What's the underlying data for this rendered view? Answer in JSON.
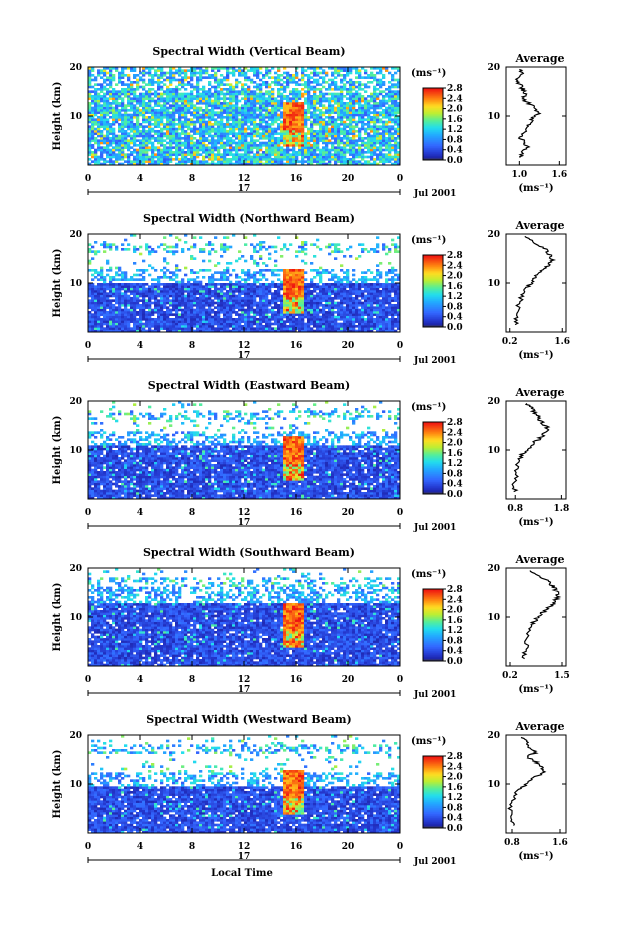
{
  "chart_data": [
    {
      "type": "heatmap",
      "title": "Spectral Width (Vertical Beam)",
      "ylabel": "Height (km)",
      "x_ticks": [
        "0",
        "4",
        "8",
        "12",
        "16",
        "20",
        "0"
      ],
      "y_ticks": [
        "10",
        "20"
      ],
      "ylim": [
        0,
        20
      ],
      "date_label": "17",
      "date_suffix": "Jul 2001",
      "cbar_unit": "(ms⁻¹)",
      "cbar_ticks": [
        "0.0",
        "0.4",
        "0.8",
        "1.2",
        "1.6",
        "2.0",
        "2.4",
        "2.8"
      ],
      "avg": {
        "title": "Average",
        "x_ticks": [
          "1.0",
          "1.6"
        ],
        "xlim": [
          0.8,
          1.7
        ],
        "y_ticks": [
          "10",
          "20"
        ],
        "xlabel": "(ms⁻¹)",
        "profile": [
          [
            1.0,
            1.5
          ],
          [
            1.05,
            2.5
          ],
          [
            1.12,
            3.5
          ],
          [
            1.08,
            4.5
          ],
          [
            1.02,
            5.5
          ],
          [
            1.05,
            6.5
          ],
          [
            1.1,
            7.5
          ],
          [
            1.15,
            8.5
          ],
          [
            1.2,
            9.5
          ],
          [
            1.3,
            10.5
          ],
          [
            1.25,
            11.5
          ],
          [
            1.15,
            12.5
          ],
          [
            1.05,
            13.5
          ],
          [
            1.1,
            14.5
          ],
          [
            1.05,
            15.5
          ],
          [
            1.0,
            16.5
          ],
          [
            0.98,
            17.5
          ],
          [
            1.05,
            18.5
          ],
          [
            1.0,
            19.5
          ]
        ]
      }
    },
    {
      "type": "heatmap",
      "title": "Spectral Width (Northward Beam)",
      "ylabel": "Height (km)",
      "x_ticks": [
        "0",
        "4",
        "8",
        "12",
        "16",
        "20",
        "0"
      ],
      "y_ticks": [
        "10",
        "20"
      ],
      "ylim": [
        0,
        20
      ],
      "date_label": "17",
      "date_suffix": "Jul 2001",
      "cbar_unit": "(ms⁻¹)",
      "cbar_ticks": [
        "0.0",
        "0.4",
        "0.8",
        "1.2",
        "1.6",
        "2.0",
        "2.4",
        "2.8"
      ],
      "avg": {
        "title": "Average",
        "x_ticks": [
          "0.2",
          "1.6"
        ],
        "xlim": [
          0.1,
          1.7
        ],
        "y_ticks": [
          "10",
          "20"
        ],
        "xlabel": "(ms⁻¹)",
        "profile": [
          [
            0.35,
            1.5
          ],
          [
            0.38,
            3
          ],
          [
            0.42,
            5
          ],
          [
            0.5,
            7
          ],
          [
            0.6,
            8.5
          ],
          [
            0.72,
            9.5
          ],
          [
            0.82,
            10.5
          ],
          [
            0.92,
            11.5
          ],
          [
            1.05,
            12.5
          ],
          [
            1.2,
            13.5
          ],
          [
            1.35,
            14.5
          ],
          [
            1.3,
            15.5
          ],
          [
            1.2,
            16.5
          ],
          [
            1.05,
            17.5
          ],
          [
            0.8,
            18.5
          ],
          [
            0.6,
            19.5
          ]
        ]
      }
    },
    {
      "type": "heatmap",
      "title": "Spectral Width (Eastward Beam)",
      "ylabel": "Height (km)",
      "x_ticks": [
        "0",
        "4",
        "8",
        "12",
        "16",
        "20",
        "0"
      ],
      "y_ticks": [
        "10",
        "20"
      ],
      "ylim": [
        0,
        20
      ],
      "date_label": "17",
      "date_suffix": "Jul 2001",
      "cbar_unit": "(ms⁻¹)",
      "cbar_ticks": [
        "0.0",
        "0.4",
        "0.8",
        "1.2",
        "1.6",
        "2.0",
        "2.4",
        "2.8"
      ],
      "avg": {
        "title": "Average",
        "x_ticks": [
          "0.8",
          "1.8"
        ],
        "xlim": [
          0.6,
          1.9
        ],
        "y_ticks": [
          "10",
          "20"
        ],
        "xlabel": "(ms⁻¹)",
        "profile": [
          [
            0.8,
            1.5
          ],
          [
            0.78,
            3
          ],
          [
            0.82,
            5
          ],
          [
            0.85,
            7
          ],
          [
            0.9,
            8.5
          ],
          [
            1.0,
            9.5
          ],
          [
            1.1,
            10.5
          ],
          [
            1.2,
            11.5
          ],
          [
            1.35,
            12.5
          ],
          [
            1.45,
            13.5
          ],
          [
            1.5,
            14.5
          ],
          [
            1.4,
            15.5
          ],
          [
            1.3,
            16.5
          ],
          [
            1.25,
            17.5
          ],
          [
            1.15,
            18.5
          ],
          [
            1.05,
            19.5
          ]
        ]
      }
    },
    {
      "type": "heatmap",
      "title": "Spectral Width (Southward Beam)",
      "ylabel": "Height (km)",
      "x_ticks": [
        "0",
        "4",
        "8",
        "12",
        "16",
        "20",
        "0"
      ],
      "y_ticks": [
        "10",
        "20"
      ],
      "ylim": [
        0,
        20
      ],
      "date_label": "17",
      "date_suffix": "Jul 2001",
      "cbar_unit": "(ms⁻¹)",
      "cbar_ticks": [
        "0.0",
        "0.4",
        "0.8",
        "1.2",
        "1.6",
        "2.0",
        "2.4",
        "2.8"
      ],
      "avg": {
        "title": "Average",
        "x_ticks": [
          "0.2",
          "1.5"
        ],
        "xlim": [
          0.1,
          1.6
        ],
        "y_ticks": [
          "10",
          "20"
        ],
        "xlabel": "(ms⁻¹)",
        "profile": [
          [
            0.55,
            1.5
          ],
          [
            0.58,
            3
          ],
          [
            0.62,
            5
          ],
          [
            0.68,
            7
          ],
          [
            0.75,
            8.5
          ],
          [
            0.85,
            9.5
          ],
          [
            0.95,
            10.5
          ],
          [
            1.1,
            11.5
          ],
          [
            1.25,
            12.5
          ],
          [
            1.35,
            13.5
          ],
          [
            1.4,
            14.5
          ],
          [
            1.35,
            15.5
          ],
          [
            1.25,
            16.5
          ],
          [
            1.1,
            17.5
          ],
          [
            0.95,
            18.5
          ],
          [
            0.7,
            19.5
          ]
        ]
      }
    },
    {
      "type": "heatmap",
      "title": "Spectral Width (Westward Beam)",
      "ylabel": "Height (km)",
      "x_ticks": [
        "0",
        "4",
        "8",
        "12",
        "16",
        "20",
        "0"
      ],
      "y_ticks": [
        "10",
        "20"
      ],
      "ylim": [
        0,
        20
      ],
      "date_label": "17",
      "date_suffix": "Jul 2001",
      "cbar_unit": "(ms⁻¹)",
      "cbar_ticks": [
        "0.0",
        "0.4",
        "0.8",
        "1.2",
        "1.6",
        "2.0",
        "2.4",
        "2.8"
      ],
      "xlabel": "Local Time",
      "avg": {
        "title": "Average",
        "x_ticks": [
          "0.8",
          "1.6"
        ],
        "xlim": [
          0.7,
          1.7
        ],
        "y_ticks": [
          "10",
          "20"
        ],
        "xlabel": "(ms⁻¹)",
        "profile": [
          [
            0.85,
            1.5
          ],
          [
            0.8,
            3
          ],
          [
            0.78,
            5
          ],
          [
            0.82,
            7
          ],
          [
            0.9,
            8.5
          ],
          [
            1.0,
            9.5
          ],
          [
            1.1,
            10.5
          ],
          [
            1.2,
            11.5
          ],
          [
            1.35,
            12.5
          ],
          [
            1.3,
            13.5
          ],
          [
            1.2,
            14.5
          ],
          [
            1.05,
            15.5
          ],
          [
            1.2,
            16.5
          ],
          [
            1.1,
            17.5
          ],
          [
            1.05,
            18.5
          ],
          [
            0.95,
            19.5
          ]
        ]
      }
    }
  ]
}
